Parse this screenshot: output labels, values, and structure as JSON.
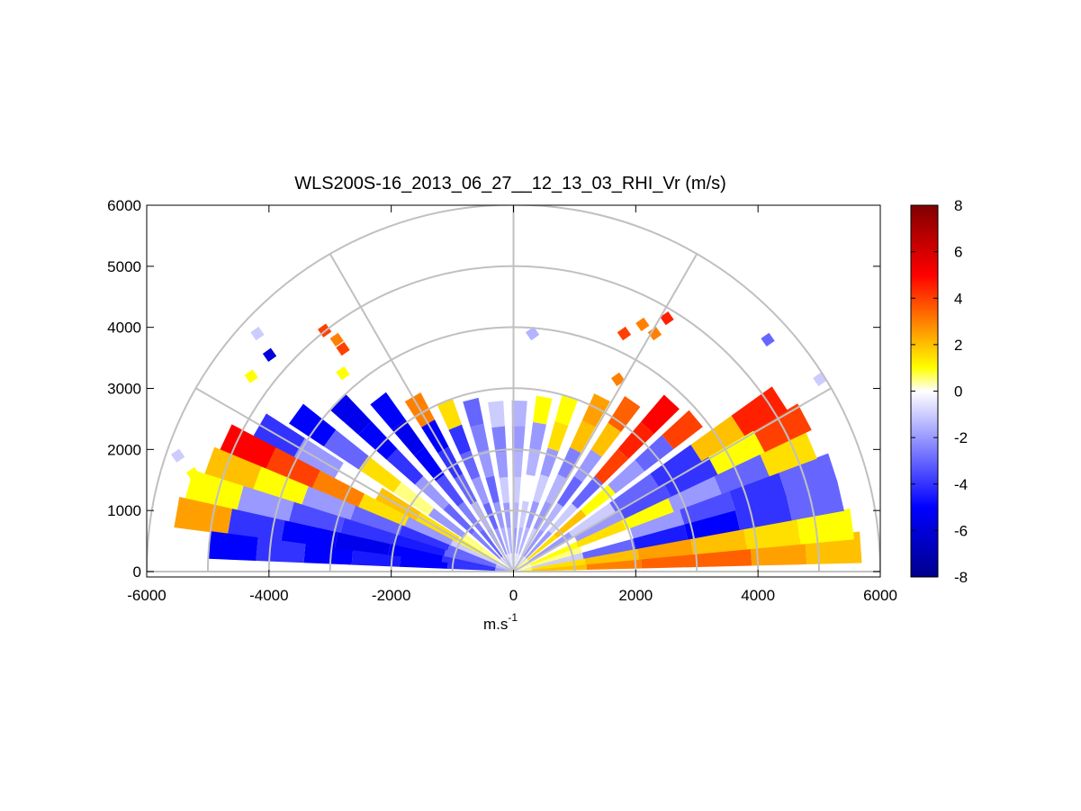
{
  "chart_data": {
    "type": "heatmap",
    "subtype": "polar RHI scan (range-height indicator)",
    "title": "WLS200S-16_2013_06_27__12_13_03_RHI_Vr (m/s)",
    "xlabel_base": "m.s",
    "xlabel_exponent": "-1",
    "ylabel": "",
    "xlim": [
      -6000,
      6000
    ],
    "ylim": [
      0,
      6000
    ],
    "x_ticks": [
      "-6000",
      "-4000",
      "-2000",
      "0",
      "2000",
      "4000",
      "6000"
    ],
    "y_ticks": [
      "0",
      "1000",
      "2000",
      "3000",
      "4000",
      "5000",
      "6000"
    ],
    "grid": "polar grid: range rings every 1000, spokes every 30 degrees",
    "range_rings": [
      1000,
      2000,
      3000,
      4000,
      5000,
      6000
    ],
    "spoke_angles_deg": [
      0,
      30,
      60,
      90,
      120,
      150,
      180
    ],
    "colorbar": {
      "label": "",
      "range": [
        -8,
        8
      ],
      "ticks": [
        "8",
        "6",
        "4",
        "2",
        "0",
        "-2",
        "-4",
        "-6",
        "-8"
      ],
      "colors": [
        "#00008c",
        "#0000ff",
        "#9999ff",
        "#ffffff",
        "#ffff00",
        "#ff8000",
        "#ff0000",
        "#800000"
      ],
      "stops": [
        -8,
        -5,
        -2,
        0,
        1,
        3,
        5,
        8
      ]
    },
    "beams": [
      {
        "az": 4,
        "r": [
          300,
          5700
        ],
        "v": [
          2,
          3,
          3.5,
          3.5,
          2.5,
          2
        ]
      },
      {
        "az": 8,
        "r": [
          300,
          5600
        ],
        "v": [
          1.5,
          2,
          2.5,
          2,
          1.5,
          1
        ]
      },
      {
        "az": 13,
        "r": [
          300,
          5500
        ],
        "v": [
          -1,
          -3,
          -4.5,
          -5,
          -4,
          -3
        ]
      },
      {
        "az": 18,
        "r": [
          300,
          5500
        ],
        "v": [
          0.5,
          0,
          -2,
          -3.5,
          -4,
          -3
        ]
      },
      {
        "az": 23,
        "r": [
          300,
          5300
        ],
        "v": [
          1,
          1.5,
          1,
          -2,
          -3,
          1.5
        ]
      },
      {
        "az": 28,
        "r": [
          300,
          5400
        ],
        "v": [
          0,
          -2,
          -3.5,
          -4,
          1,
          4
        ]
      },
      {
        "az": 33,
        "r": [
          300,
          5200
        ],
        "v": [
          -2,
          -1,
          -3,
          -4,
          2,
          4.5
        ]
      },
      {
        "az": 40,
        "r": [
          300,
          3900
        ],
        "v": [
          1.5,
          2,
          1,
          -2,
          -3,
          4
        ]
      },
      {
        "az": 47,
        "r": [
          300,
          3800
        ],
        "v": [
          -2,
          -1,
          -3,
          4,
          4.5,
          5
        ]
      },
      {
        "az": 55,
        "r": [
          300,
          3400
        ],
        "v": [
          -2,
          -1.5,
          -3,
          -2,
          2,
          3.5
        ]
      },
      {
        "az": 63,
        "r": [
          300,
          3200
        ],
        "v": [
          -1,
          -2,
          -1.5,
          -2.5,
          2,
          2.5
        ]
      },
      {
        "az": 72,
        "r": [
          300,
          3000
        ],
        "v": [
          -1.5,
          -2,
          -1,
          -2,
          1.5,
          1
        ]
      },
      {
        "az": 80,
        "r": [
          300,
          2900
        ],
        "v": [
          -1.5,
          -1,
          0,
          -1.5,
          -2,
          1
        ]
      },
      {
        "az": 88,
        "r": [
          300,
          2800
        ],
        "v": [
          -2,
          -1.5,
          -1,
          -1.5,
          -2,
          -1.5
        ]
      },
      {
        "az": 96,
        "r": [
          300,
          2800
        ],
        "v": [
          -1.5,
          -2,
          -1,
          -2,
          -2.5,
          -1
        ]
      },
      {
        "az": 104,
        "r": [
          300,
          2900
        ],
        "v": [
          -1.5,
          -2,
          -3,
          -2,
          -2.5,
          -3
        ]
      },
      {
        "az": 112,
        "r": [
          300,
          3000
        ],
        "v": [
          -2,
          -3,
          -2,
          -3,
          -4,
          1.5
        ]
      },
      {
        "az": 120,
        "r": [
          300,
          3300
        ],
        "v": [
          -2,
          -1.5,
          -3,
          -4,
          -5,
          3
        ]
      },
      {
        "az": 128,
        "r": [
          300,
          3600
        ],
        "v": [
          -3,
          -2.5,
          -3.5,
          -5,
          -5.5,
          -5
        ]
      },
      {
        "az": 136,
        "r": [
          300,
          4000
        ],
        "v": [
          -2.5,
          -3,
          -2,
          -4,
          -5,
          -5.5
        ]
      },
      {
        "az": 144,
        "r": [
          300,
          4400
        ],
        "v": [
          0.5,
          -2,
          0.5,
          1.5,
          -3,
          -5
        ]
      },
      {
        "az": 150,
        "r": [
          300,
          4800
        ],
        "v": [
          1,
          1.5,
          2,
          0,
          -2,
          -4
        ]
      },
      {
        "az": 155,
        "r": [
          300,
          5200
        ],
        "v": [
          -1,
          -2,
          1.5,
          3,
          4,
          5
        ]
      },
      {
        "az": 160,
        "r": [
          300,
          5300
        ],
        "v": [
          -3,
          -4,
          -3,
          -2,
          1,
          2
        ]
      },
      {
        "az": 165,
        "r": [
          300,
          5500
        ],
        "v": [
          -3,
          -4.5,
          -4,
          -3.5,
          -2,
          1
        ]
      },
      {
        "az": 170,
        "r": [
          300,
          5600
        ],
        "v": [
          -4,
          -5,
          -5.5,
          -5,
          -4,
          2.5
        ]
      },
      {
        "az": 175,
        "r": [
          300,
          5000
        ],
        "v": [
          -4,
          -5,
          -4.5,
          -5,
          -4,
          -5
        ]
      }
    ],
    "isolated_gates": [
      {
        "x": -4200,
        "y": 3900,
        "v": -1
      },
      {
        "x": -4000,
        "y": 3550,
        "v": -6
      },
      {
        "x": -4300,
        "y": 3200,
        "v": 1
      },
      {
        "x": -3100,
        "y": 3950,
        "v": 4
      },
      {
        "x": -2900,
        "y": 3800,
        "v": 3
      },
      {
        "x": -2800,
        "y": 3650,
        "v": 4
      },
      {
        "x": -2800,
        "y": 3250,
        "v": 1
      },
      {
        "x": 300,
        "y": 3900,
        "v": -1.5
      },
      {
        "x": 1700,
        "y": 3150,
        "v": 3
      },
      {
        "x": 1800,
        "y": 3900,
        "v": 4
      },
      {
        "x": 2100,
        "y": 4050,
        "v": 3
      },
      {
        "x": 2500,
        "y": 4150,
        "v": 4.5
      },
      {
        "x": 2300,
        "y": 3900,
        "v": 3
      },
      {
        "x": 4150,
        "y": 3800,
        "v": -3
      },
      {
        "x": 5000,
        "y": 3150,
        "v": -1
      },
      {
        "x": -5500,
        "y": 1900,
        "v": -1
      },
      {
        "x": -5250,
        "y": 1600,
        "v": 1
      }
    ]
  }
}
